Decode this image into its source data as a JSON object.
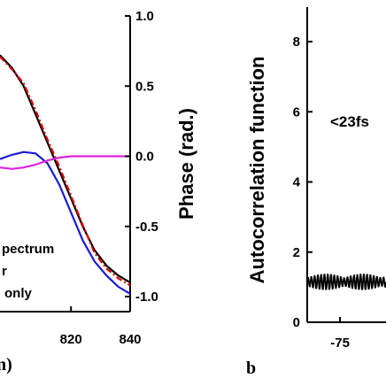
{
  "chart_data": [
    {
      "type": "line",
      "panel_label": "n)",
      "xlabel": "",
      "x_ticks": [
        "820",
        "840"
      ],
      "xlim": [
        796,
        840
      ],
      "right_axis": {
        "label": "Phase (rad.)",
        "ylim": [
          -1.0,
          1.0
        ],
        "ticks": [
          "1.0",
          "0.5",
          "0.0",
          "-0.5",
          "-1.0"
        ]
      },
      "legend_fragments": [
        "pectrum",
        "r",
        "only"
      ],
      "series": [
        {
          "color": "#000000",
          "style": "solid",
          "x": [
            796,
            800,
            804,
            808,
            812,
            816,
            820,
            824,
            828,
            832,
            836,
            840
          ],
          "y": [
            0.72,
            0.63,
            0.5,
            0.3,
            0.1,
            -0.1,
            -0.3,
            -0.5,
            -0.67,
            -0.78,
            -0.85,
            -0.9
          ]
        },
        {
          "color": "#e00000",
          "style": "dashdot",
          "x": [
            796,
            800,
            804,
            808,
            812,
            816,
            820,
            824,
            828,
            832,
            836,
            840
          ],
          "y": [
            0.71,
            0.62,
            0.52,
            0.33,
            0.12,
            -0.07,
            -0.28,
            -0.49,
            -0.69,
            -0.8,
            -0.87,
            -0.92
          ]
        },
        {
          "color": "#1a1ad4",
          "style": "solid",
          "x": [
            796,
            800,
            804,
            808,
            812,
            816,
            820,
            824,
            828,
            832,
            836,
            840
          ],
          "y": [
            -0.02,
            0.01,
            0.03,
            0.02,
            -0.05,
            -0.2,
            -0.4,
            -0.6,
            -0.75,
            -0.85,
            -0.93,
            -0.98
          ]
        },
        {
          "color": "#e020e0",
          "style": "solid",
          "x": [
            796,
            800,
            804,
            808,
            812,
            816,
            820,
            824,
            828,
            832,
            836,
            840
          ],
          "y": [
            -0.08,
            -0.09,
            -0.08,
            -0.06,
            -0.03,
            -0.01,
            0.0,
            0.0,
            0.0,
            0.0,
            0.0,
            0.0
          ]
        }
      ]
    },
    {
      "type": "line",
      "panel_label": "b",
      "ylabel": "Autocorrelation function",
      "ylim": [
        0,
        9
      ],
      "y_ticks": [
        "0",
        "2",
        "4",
        "6",
        "8"
      ],
      "x_ticks": [
        "-75"
      ],
      "xlim": [
        -100,
        -40
      ],
      "annotation": "<23fs",
      "series": [
        {
          "color": "#000000",
          "style": "oscillating",
          "x_range": [
            -100,
            -40
          ],
          "mean": 1.15,
          "amplitude": 0.22,
          "period": 2.5
        }
      ]
    }
  ]
}
